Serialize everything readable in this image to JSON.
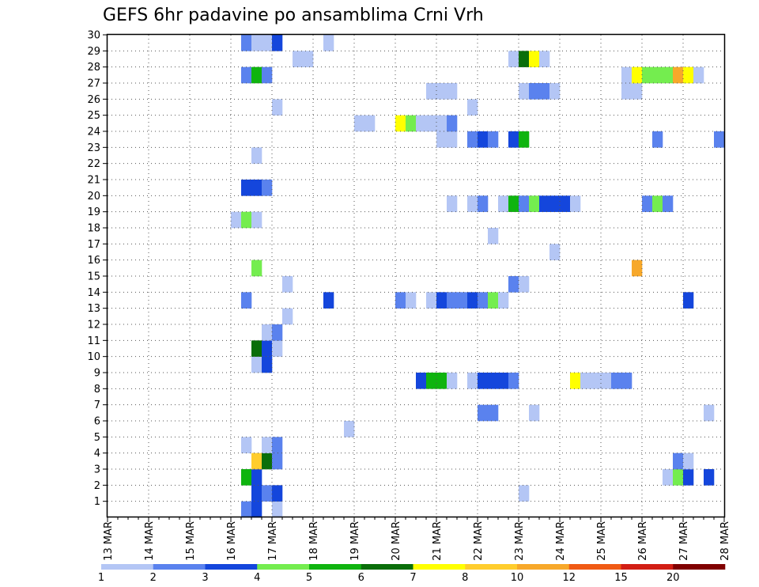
{
  "chart_data": {
    "type": "heatmap",
    "title": "GEFS 6hr padavine po ansamblima Crni Vrh",
    "xlabel": "",
    "ylabel": "",
    "x_tick_labels": [
      "13 MAR",
      "14 MAR",
      "15 MAR",
      "16 MAR",
      "17 MAR",
      "18 MAR",
      "19 MAR",
      "20 MAR",
      "21 MAR",
      "22 MAR",
      "23 MAR",
      "24 MAR",
      "25 MAR",
      "26 MAR",
      "27 MAR",
      "28 MAR"
    ],
    "y_tick_labels": [
      "1",
      "2",
      "3",
      "4",
      "5",
      "6",
      "7",
      "8",
      "9",
      "10",
      "11",
      "12",
      "13",
      "14",
      "15",
      "16",
      "17",
      "18",
      "19",
      "20",
      "21",
      "22",
      "23",
      "24",
      "25",
      "26",
      "27",
      "28",
      "29",
      "30"
    ],
    "xlim": [
      0,
      15
    ],
    "ylim": [
      0,
      30
    ],
    "x_unit": "days since 13 MAR 00Z",
    "y_unit": "ensemble member",
    "grid": true,
    "colorbar": {
      "position": "bottom",
      "bounds": [
        "1",
        "2",
        "3",
        "4",
        "5",
        "6",
        "7",
        "8",
        "10",
        "12",
        "15",
        "20"
      ],
      "colors": [
        "#b4c6f5",
        "#5a82ee",
        "#1446dc",
        "#74ed4f",
        "#0fb40f",
        "#0a6e0a",
        "#ffff00",
        "#ffcd2d",
        "#f7a82a",
        "#f05a14",
        "#d21e14",
        "#800000"
      ]
    },
    "cells": [
      {
        "t": 3.25,
        "m": 0,
        "c": 1
      },
      {
        "t": 3.5,
        "m": 0,
        "c": 2
      },
      {
        "t": 4.0,
        "m": 0,
        "c": 0
      },
      {
        "t": 3.5,
        "m": 1,
        "c": 2
      },
      {
        "t": 3.75,
        "m": 1,
        "c": 1
      },
      {
        "t": 4.0,
        "m": 1,
        "c": 2
      },
      {
        "t": 10.0,
        "m": 1,
        "c": 0
      },
      {
        "t": 3.25,
        "m": 2,
        "c": 4
      },
      {
        "t": 3.5,
        "m": 2,
        "c": 2
      },
      {
        "t": 13.5,
        "m": 2,
        "c": 0
      },
      {
        "t": 13.75,
        "m": 2,
        "c": 3
      },
      {
        "t": 14.0,
        "m": 2,
        "c": 2
      },
      {
        "t": 14.5,
        "m": 2,
        "c": 2
      },
      {
        "t": 3.5,
        "m": 3,
        "c": 7
      },
      {
        "t": 3.75,
        "m": 3,
        "c": 5
      },
      {
        "t": 4.0,
        "m": 3,
        "c": 1
      },
      {
        "t": 13.75,
        "m": 3,
        "c": 1
      },
      {
        "t": 14.0,
        "m": 3,
        "c": 0
      },
      {
        "t": 3.25,
        "m": 4,
        "c": 0
      },
      {
        "t": 3.75,
        "m": 4,
        "c": 0
      },
      {
        "t": 4.0,
        "m": 4,
        "c": 1
      },
      {
        "t": 5.75,
        "m": 5,
        "c": 0
      },
      {
        "t": 9.0,
        "m": 6,
        "c": 1
      },
      {
        "t": 9.25,
        "m": 6,
        "c": 1
      },
      {
        "t": 10.25,
        "m": 6,
        "c": 0
      },
      {
        "t": 14.5,
        "m": 6,
        "c": 0
      },
      {
        "t": 7.5,
        "m": 8,
        "c": 2
      },
      {
        "t": 7.75,
        "m": 8,
        "c": 4
      },
      {
        "t": 8.0,
        "m": 8,
        "c": 4
      },
      {
        "t": 8.25,
        "m": 8,
        "c": 0
      },
      {
        "t": 8.75,
        "m": 8,
        "c": 0
      },
      {
        "t": 9.0,
        "m": 8,
        "c": 2
      },
      {
        "t": 9.25,
        "m": 8,
        "c": 2
      },
      {
        "t": 9.5,
        "m": 8,
        "c": 2
      },
      {
        "t": 9.75,
        "m": 8,
        "c": 1
      },
      {
        "t": 11.25,
        "m": 8,
        "c": 6
      },
      {
        "t": 11.5,
        "m": 8,
        "c": 0
      },
      {
        "t": 11.75,
        "m": 8,
        "c": 0
      },
      {
        "t": 12.0,
        "m": 8,
        "c": 0
      },
      {
        "t": 12.25,
        "m": 8,
        "c": 1
      },
      {
        "t": 12.5,
        "m": 8,
        "c": 1
      },
      {
        "t": 3.5,
        "m": 9,
        "c": 0
      },
      {
        "t": 3.75,
        "m": 9,
        "c": 2
      },
      {
        "t": 3.5,
        "m": 10,
        "c": 5
      },
      {
        "t": 3.75,
        "m": 10,
        "c": 2
      },
      {
        "t": 4.0,
        "m": 10,
        "c": 0
      },
      {
        "t": 3.75,
        "m": 11,
        "c": 0
      },
      {
        "t": 4.0,
        "m": 11,
        "c": 1
      },
      {
        "t": 4.25,
        "m": 12,
        "c": 0
      },
      {
        "t": 3.25,
        "m": 13,
        "c": 1
      },
      {
        "t": 5.25,
        "m": 13,
        "c": 2
      },
      {
        "t": 7.0,
        "m": 13,
        "c": 1
      },
      {
        "t": 7.25,
        "m": 13,
        "c": 0
      },
      {
        "t": 7.75,
        "m": 13,
        "c": 0
      },
      {
        "t": 8.0,
        "m": 13,
        "c": 2
      },
      {
        "t": 8.25,
        "m": 13,
        "c": 1
      },
      {
        "t": 8.5,
        "m": 13,
        "c": 1
      },
      {
        "t": 8.75,
        "m": 13,
        "c": 2
      },
      {
        "t": 9.0,
        "m": 13,
        "c": 1
      },
      {
        "t": 9.25,
        "m": 13,
        "c": 3
      },
      {
        "t": 9.5,
        "m": 13,
        "c": 0
      },
      {
        "t": 14.0,
        "m": 13,
        "c": 2
      },
      {
        "t": 4.25,
        "m": 14,
        "c": 0
      },
      {
        "t": 9.75,
        "m": 14,
        "c": 1
      },
      {
        "t": 10.0,
        "m": 14,
        "c": 0
      },
      {
        "t": 3.5,
        "m": 15,
        "c": 3
      },
      {
        "t": 12.75,
        "m": 15,
        "c": 8
      },
      {
        "t": 10.75,
        "m": 16,
        "c": 0
      },
      {
        "t": 9.25,
        "m": 17,
        "c": 0
      },
      {
        "t": 3.0,
        "m": 18,
        "c": 0
      },
      {
        "t": 3.25,
        "m": 18,
        "c": 3
      },
      {
        "t": 3.5,
        "m": 18,
        "c": 0
      },
      {
        "t": 8.25,
        "m": 19,
        "c": 0
      },
      {
        "t": 8.75,
        "m": 19,
        "c": 0
      },
      {
        "t": 9.0,
        "m": 19,
        "c": 1
      },
      {
        "t": 9.5,
        "m": 19,
        "c": 0
      },
      {
        "t": 9.75,
        "m": 19,
        "c": 4
      },
      {
        "t": 10.0,
        "m": 19,
        "c": 1
      },
      {
        "t": 10.25,
        "m": 19,
        "c": 3
      },
      {
        "t": 10.5,
        "m": 19,
        "c": 2
      },
      {
        "t": 10.75,
        "m": 19,
        "c": 2
      },
      {
        "t": 11.0,
        "m": 19,
        "c": 2
      },
      {
        "t": 11.25,
        "m": 19,
        "c": 0
      },
      {
        "t": 13.0,
        "m": 19,
        "c": 1
      },
      {
        "t": 13.25,
        "m": 19,
        "c": 3
      },
      {
        "t": 13.5,
        "m": 19,
        "c": 1
      },
      {
        "t": 3.25,
        "m": 20,
        "c": 2
      },
      {
        "t": 3.5,
        "m": 20,
        "c": 2
      },
      {
        "t": 3.75,
        "m": 20,
        "c": 1
      },
      {
        "t": 3.5,
        "m": 22,
        "c": 0
      },
      {
        "t": 8.0,
        "m": 23,
        "c": 0
      },
      {
        "t": 8.25,
        "m": 23,
        "c": 0
      },
      {
        "t": 8.75,
        "m": 23,
        "c": 1
      },
      {
        "t": 9.0,
        "m": 23,
        "c": 2
      },
      {
        "t": 9.25,
        "m": 23,
        "c": 1
      },
      {
        "t": 9.75,
        "m": 23,
        "c": 2
      },
      {
        "t": 10.0,
        "m": 23,
        "c": 4
      },
      {
        "t": 13.25,
        "m": 23,
        "c": 1
      },
      {
        "t": 14.75,
        "m": 23,
        "c": 1
      },
      {
        "t": 6.0,
        "m": 24,
        "c": 0
      },
      {
        "t": 6.25,
        "m": 24,
        "c": 0
      },
      {
        "t": 7.0,
        "m": 24,
        "c": 6
      },
      {
        "t": 7.25,
        "m": 24,
        "c": 3
      },
      {
        "t": 7.5,
        "m": 24,
        "c": 0
      },
      {
        "t": 7.75,
        "m": 24,
        "c": 0
      },
      {
        "t": 8.0,
        "m": 24,
        "c": 0
      },
      {
        "t": 8.25,
        "m": 24,
        "c": 1
      },
      {
        "t": 4.0,
        "m": 25,
        "c": 0
      },
      {
        "t": 8.75,
        "m": 25,
        "c": 0
      },
      {
        "t": 7.75,
        "m": 26,
        "c": 0
      },
      {
        "t": 8.0,
        "m": 26,
        "c": 0
      },
      {
        "t": 8.25,
        "m": 26,
        "c": 0
      },
      {
        "t": 10.0,
        "m": 26,
        "c": 0
      },
      {
        "t": 10.25,
        "m": 26,
        "c": 1
      },
      {
        "t": 10.5,
        "m": 26,
        "c": 1
      },
      {
        "t": 10.75,
        "m": 26,
        "c": 0
      },
      {
        "t": 12.5,
        "m": 26,
        "c": 0
      },
      {
        "t": 12.75,
        "m": 26,
        "c": 0
      },
      {
        "t": 3.25,
        "m": 27,
        "c": 1
      },
      {
        "t": 3.5,
        "m": 27,
        "c": 4
      },
      {
        "t": 3.75,
        "m": 27,
        "c": 1
      },
      {
        "t": 12.5,
        "m": 27,
        "c": 0
      },
      {
        "t": 12.75,
        "m": 27,
        "c": 6
      },
      {
        "t": 13.0,
        "m": 27,
        "c": 3
      },
      {
        "t": 13.25,
        "m": 27,
        "c": 3
      },
      {
        "t": 13.5,
        "m": 27,
        "c": 3
      },
      {
        "t": 13.75,
        "m": 27,
        "c": 8
      },
      {
        "t": 14.0,
        "m": 27,
        "c": 6
      },
      {
        "t": 14.25,
        "m": 27,
        "c": 0
      },
      {
        "t": 4.5,
        "m": 28,
        "c": 0
      },
      {
        "t": 4.75,
        "m": 28,
        "c": 0
      },
      {
        "t": 9.75,
        "m": 28,
        "c": 0
      },
      {
        "t": 10.0,
        "m": 28,
        "c": 5
      },
      {
        "t": 10.25,
        "m": 28,
        "c": 6
      },
      {
        "t": 10.5,
        "m": 28,
        "c": 0
      },
      {
        "t": 3.25,
        "m": 29,
        "c": 1
      },
      {
        "t": 3.5,
        "m": 29,
        "c": 0
      },
      {
        "t": 3.75,
        "m": 29,
        "c": 0
      },
      {
        "t": 4.0,
        "m": 29,
        "c": 2
      },
      {
        "t": 5.25,
        "m": 29,
        "c": 0
      }
    ]
  }
}
